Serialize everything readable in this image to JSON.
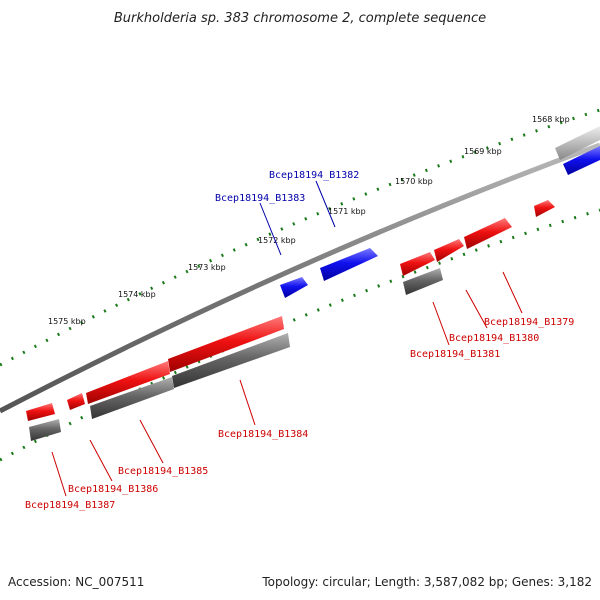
{
  "title": "Burkholderia sp. 383 chromosome 2, complete sequence",
  "footer": {
    "accession": "Accession: NC_007511",
    "summary": "Topology: circular; Length: 3,587,082 bp; Genes: 3,182"
  },
  "colors": {
    "forward": "#ee1111",
    "reverse": "#1111dd",
    "other": "#666666",
    "backbone": "#777777",
    "ticks": "#1a7a1a",
    "label_forward": "#cc0000",
    "label_reverse": "#0000aa"
  },
  "scale_labels": [
    "1568 kbp",
    "1569 kbp",
    "1570 kbp",
    "1571 kbp",
    "1572 kbp",
    "1573 kbp",
    "1574 kbp",
    "1575 kbp"
  ],
  "gene_labels": {
    "b1379": "Bcep18194_B1379",
    "b1380": "Bcep18194_B1380",
    "b1381": "Bcep18194_B1381",
    "b1382": "Bcep18194_B1382",
    "b1383": "Bcep18194_B1383",
    "b1384": "Bcep18194_B1384",
    "b1385": "Bcep18194_B1385",
    "b1386": "Bcep18194_B1386",
    "b1387": "Bcep18194_B1387"
  }
}
